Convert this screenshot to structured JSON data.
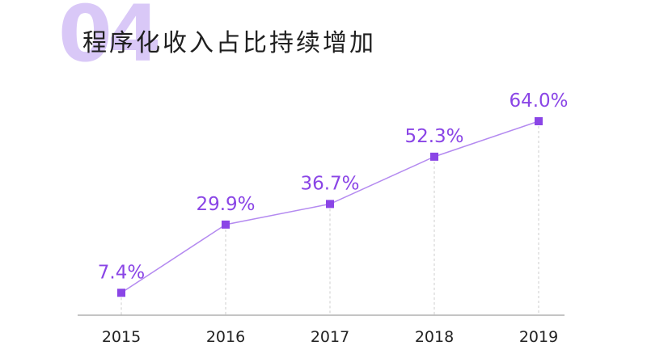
{
  "header": {
    "number": "04",
    "title": "程序化收入占比持续增加"
  },
  "colors": {
    "accent": "#8a45e6",
    "line": "#b48af0",
    "number": "#d9c8f7",
    "axis": "#888888"
  },
  "chart_data": {
    "type": "line",
    "categories": [
      "2015",
      "2016",
      "2017",
      "2018",
      "2019"
    ],
    "values": [
      7.4,
      29.9,
      36.7,
      52.3,
      64.0
    ],
    "data_labels": [
      "7.4%",
      "29.9%",
      "36.7%",
      "52.3%",
      "64.0%"
    ],
    "title": "程序化收入占比持续增加",
    "xlabel": "",
    "ylabel": "",
    "unit": "%",
    "ylim": [
      0,
      70
    ],
    "grid": false,
    "legend": "none"
  }
}
